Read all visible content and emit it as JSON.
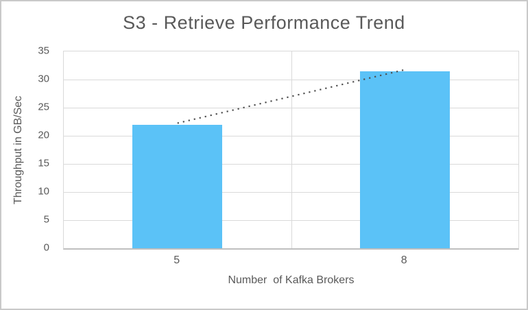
{
  "chart_data": {
    "type": "bar",
    "title": "S3 - Retrieve Performance Trend",
    "categories": [
      "5",
      "8"
    ],
    "values": [
      22,
      31.5
    ],
    "xlabel": "Number  of Kafka Brokers",
    "ylabel": "Throughput in GB/Sec",
    "ylim": [
      0,
      35
    ],
    "yticks": [
      0,
      5,
      10,
      15,
      20,
      25,
      30,
      35
    ],
    "grid": "horizontal major gridlines + vertical category-boundary gridline",
    "legend": "none",
    "bar_color": "#5BC2F7",
    "trendline": {
      "type": "linear",
      "style": "dotted",
      "color": "#4d4d4d",
      "points": [
        {
          "category": "5",
          "value": 22
        },
        {
          "category": "8",
          "value": 31.5
        }
      ]
    },
    "colors": {
      "text": "#595959",
      "gridline": "#d9d9d9",
      "axis_line": "#bfbfbf",
      "frame_border": "#c9c9c9",
      "background": "#ffffff"
    }
  }
}
